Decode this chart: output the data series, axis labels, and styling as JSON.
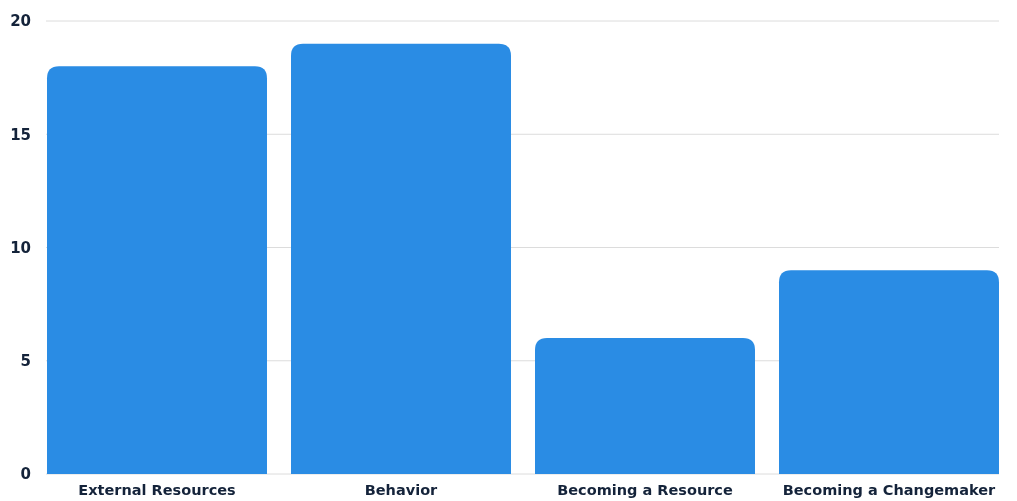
{
  "chart_data": {
    "type": "bar",
    "categories": [
      "External Resources",
      "Behavior",
      "Becoming a Resource",
      "Becoming a Changemaker"
    ],
    "values": [
      18,
      19,
      6,
      9
    ],
    "color": "#2a8ce4",
    "ylim": [
      0,
      20
    ],
    "yticks": [
      0,
      5,
      10,
      15,
      20
    ],
    "grid": "y"
  }
}
